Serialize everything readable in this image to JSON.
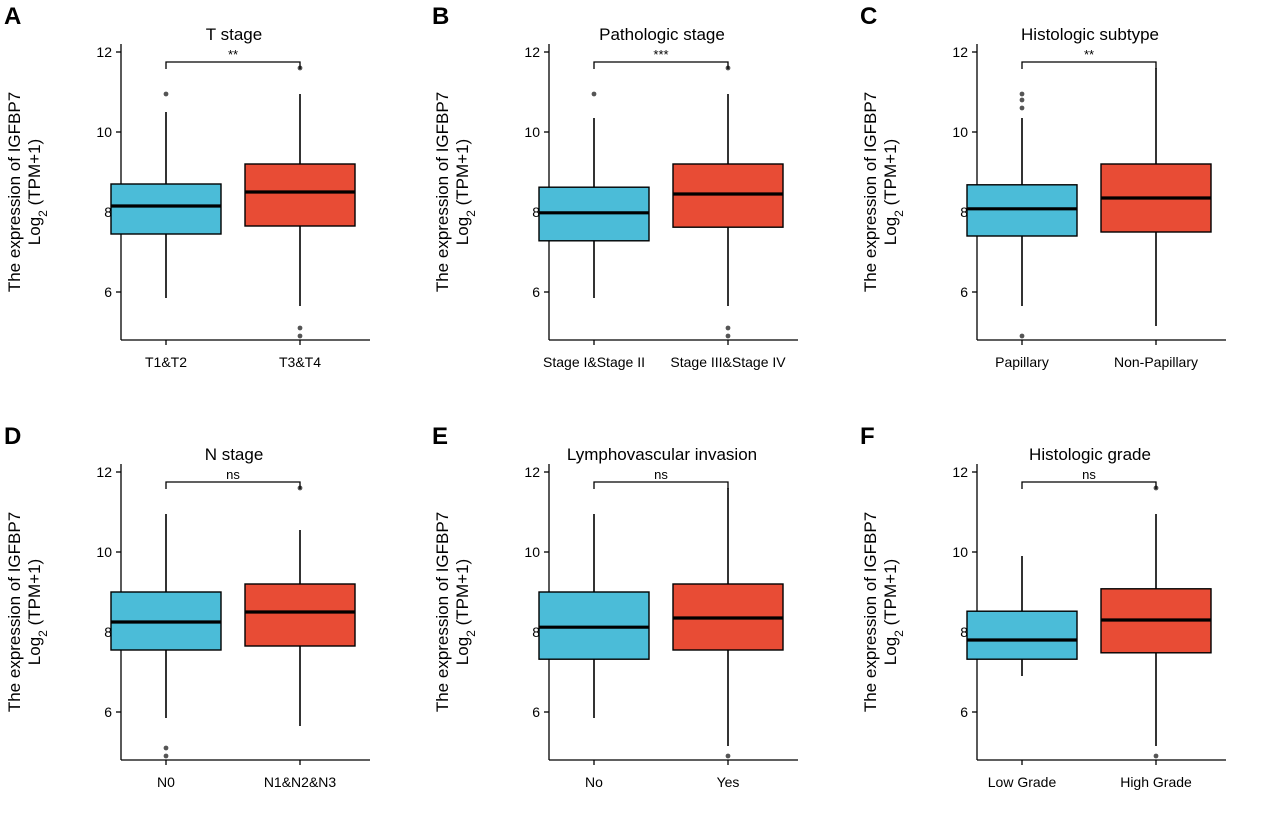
{
  "chart_data": [
    {
      "type": "box",
      "panel": "A",
      "title": "T stage",
      "ylabel_line1": "The expression of IGFBP7",
      "ylabel_line2_base": "Log",
      "ylabel_line2_sub": "2",
      "ylabel_line2_rest": " (TPM+1)",
      "ylim": [
        4.8,
        12.2
      ],
      "yticks": [
        6,
        8,
        10,
        12
      ],
      "significance": "**",
      "categories": [
        "T1&T2",
        "T3&T4"
      ],
      "colors": [
        "#4bbcd8",
        "#e84c35"
      ],
      "boxes": [
        {
          "whisker_low": 5.85,
          "q1": 7.45,
          "median": 8.15,
          "q3": 8.7,
          "whisker_high": 10.5,
          "outliers": [
            10.95
          ]
        },
        {
          "whisker_low": 5.65,
          "q1": 7.65,
          "median": 8.5,
          "q3": 9.2,
          "whisker_high": 10.95,
          "outliers": [
            4.9,
            5.1,
            11.6
          ]
        }
      ]
    },
    {
      "type": "box",
      "panel": "B",
      "title": "Pathologic stage",
      "ylabel_line1": "The expression of IGFBP7",
      "ylabel_line2_base": "Log",
      "ylabel_line2_sub": "2",
      "ylabel_line2_rest": " (TPM+1)",
      "ylim": [
        4.8,
        12.2
      ],
      "yticks": [
        6,
        8,
        10,
        12
      ],
      "significance": "***",
      "categories": [
        "Stage I&Stage II",
        "Stage III&Stage IV"
      ],
      "colors": [
        "#4bbcd8",
        "#e84c35"
      ],
      "boxes": [
        {
          "whisker_low": 5.85,
          "q1": 7.28,
          "median": 7.98,
          "q3": 8.62,
          "whisker_high": 10.35,
          "outliers": [
            10.95
          ]
        },
        {
          "whisker_low": 5.65,
          "q1": 7.62,
          "median": 8.45,
          "q3": 9.2,
          "whisker_high": 10.95,
          "outliers": [
            4.9,
            5.1,
            11.6
          ]
        }
      ]
    },
    {
      "type": "box",
      "panel": "C",
      "title": "Histologic subtype",
      "ylabel_line1": "The expression of IGFBP7",
      "ylabel_line2_base": "Log",
      "ylabel_line2_sub": "2",
      "ylabel_line2_rest": " (TPM+1)",
      "ylim": [
        4.8,
        12.2
      ],
      "yticks": [
        6,
        8,
        10,
        12
      ],
      "significance": "**",
      "categories": [
        "Papillary",
        "Non-Papillary"
      ],
      "colors": [
        "#4bbcd8",
        "#e84c35"
      ],
      "boxes": [
        {
          "whisker_low": 5.65,
          "q1": 7.4,
          "median": 8.08,
          "q3": 8.68,
          "whisker_high": 10.35,
          "outliers": [
            4.9,
            10.6,
            10.8,
            10.95
          ]
        },
        {
          "whisker_low": 5.15,
          "q1": 7.5,
          "median": 8.35,
          "q3": 9.2,
          "whisker_high": 11.6,
          "outliers": []
        }
      ]
    },
    {
      "type": "box",
      "panel": "D",
      "title": "N stage",
      "ylabel_line1": "The expression of IGFBP7",
      "ylabel_line2_base": "Log",
      "ylabel_line2_sub": "2",
      "ylabel_line2_rest": " (TPM+1)",
      "ylim": [
        4.8,
        12.2
      ],
      "yticks": [
        6,
        8,
        10,
        12
      ],
      "significance": "ns",
      "categories": [
        "N0",
        "N1&N2&N3"
      ],
      "colors": [
        "#4bbcd8",
        "#e84c35"
      ],
      "boxes": [
        {
          "whisker_low": 5.85,
          "q1": 7.55,
          "median": 8.25,
          "q3": 9.0,
          "whisker_high": 10.95,
          "outliers": [
            4.9,
            5.1
          ]
        },
        {
          "whisker_low": 5.65,
          "q1": 7.65,
          "median": 8.5,
          "q3": 9.2,
          "whisker_high": 10.55,
          "outliers": [
            11.6
          ]
        }
      ]
    },
    {
      "type": "box",
      "panel": "E",
      "title": "Lymphovascular invasion",
      "ylabel_line1": "The expression of IGFBP7",
      "ylabel_line2_base": "Log",
      "ylabel_line2_sub": "2",
      "ylabel_line2_rest": " (TPM+1)",
      "ylim": [
        4.8,
        12.2
      ],
      "yticks": [
        6,
        8,
        10,
        12
      ],
      "significance": "ns",
      "categories": [
        "No",
        "Yes"
      ],
      "colors": [
        "#4bbcd8",
        "#e84c35"
      ],
      "boxes": [
        {
          "whisker_low": 5.85,
          "q1": 7.32,
          "median": 8.12,
          "q3": 9.0,
          "whisker_high": 10.95,
          "outliers": []
        },
        {
          "whisker_low": 5.15,
          "q1": 7.55,
          "median": 8.35,
          "q3": 9.2,
          "whisker_high": 11.6,
          "outliers": [
            4.9
          ]
        }
      ]
    },
    {
      "type": "box",
      "panel": "F",
      "title": "Histologic grade",
      "ylabel_line1": "The expression of IGFBP7",
      "ylabel_line2_base": "Log",
      "ylabel_line2_sub": "2",
      "ylabel_line2_rest": " (TPM+1)",
      "ylim": [
        4.8,
        12.2
      ],
      "yticks": [
        6,
        8,
        10,
        12
      ],
      "significance": "ns",
      "categories": [
        "Low Grade",
        "High Grade"
      ],
      "colors": [
        "#4bbcd8",
        "#e84c35"
      ],
      "boxes": [
        {
          "whisker_low": 6.9,
          "q1": 7.32,
          "median": 7.8,
          "q3": 8.52,
          "whisker_high": 9.9,
          "outliers": []
        },
        {
          "whisker_low": 5.15,
          "q1": 7.48,
          "median": 8.3,
          "q3": 9.08,
          "whisker_high": 10.95,
          "outliers": [
            4.9,
            11.6
          ]
        }
      ]
    }
  ]
}
